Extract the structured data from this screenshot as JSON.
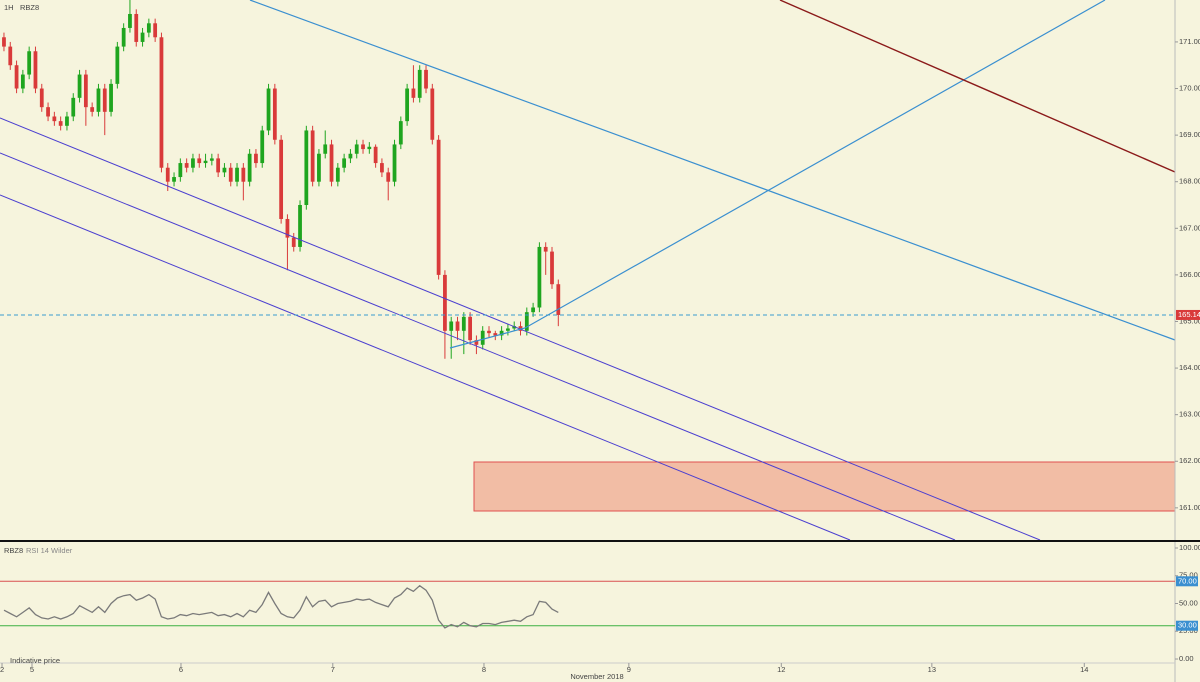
{
  "header": {
    "interval": "1H",
    "symbol": "RBZ8"
  },
  "chart_data": [
    {
      "type": "candlestick",
      "open": [
        171.1,
        170.9,
        170.5,
        170.0,
        170.3,
        170.8,
        170.0,
        169.6,
        169.4,
        169.3,
        169.2,
        169.4,
        169.8,
        170.3,
        169.6,
        169.5,
        170.0,
        169.5,
        170.1,
        170.9,
        171.3,
        171.6,
        171.0,
        171.2,
        171.4,
        171.1,
        168.3,
        168.0,
        168.1,
        168.4,
        168.3,
        168.5,
        168.4,
        168.45,
        168.5,
        168.2,
        168.3,
        168.0,
        168.3,
        168.0,
        168.6,
        168.4,
        169.1,
        170.0,
        168.9,
        167.2,
        166.8,
        166.6,
        167.5,
        169.1,
        168.0,
        168.6,
        168.8,
        168.0,
        168.3,
        168.5,
        168.6,
        168.8,
        168.7,
        168.75,
        168.4,
        168.2,
        168.0,
        168.8,
        169.3,
        170.0,
        169.8,
        170.4,
        170.0,
        168.9,
        166.0,
        164.8,
        165.0,
        164.8,
        165.1,
        164.6,
        164.5,
        164.8,
        164.75,
        164.7,
        164.8,
        164.85,
        164.9,
        164.8,
        165.2,
        165.3,
        166.6,
        166.5,
        165.8
      ],
      "high": [
        171.2,
        171.0,
        170.6,
        170.4,
        170.9,
        170.9,
        170.1,
        169.7,
        169.5,
        169.4,
        169.5,
        169.9,
        170.4,
        170.4,
        169.7,
        170.1,
        170.1,
        170.2,
        171.0,
        171.4,
        171.9,
        171.7,
        171.3,
        171.5,
        171.5,
        171.2,
        168.4,
        168.2,
        168.5,
        168.5,
        168.6,
        168.6,
        168.6,
        168.6,
        168.6,
        168.4,
        168.4,
        168.4,
        168.4,
        168.7,
        168.7,
        169.2,
        170.1,
        170.1,
        169.0,
        167.3,
        166.9,
        167.6,
        169.2,
        169.2,
        168.7,
        169.1,
        168.9,
        168.4,
        168.6,
        168.7,
        168.9,
        168.9,
        168.85,
        168.8,
        168.5,
        168.3,
        168.9,
        169.4,
        170.1,
        170.5,
        170.5,
        170.5,
        170.1,
        169.0,
        166.1,
        165.1,
        165.1,
        165.2,
        165.2,
        164.7,
        164.9,
        164.9,
        164.8,
        164.9,
        164.95,
        165.0,
        165.0,
        165.3,
        165.4,
        166.7,
        166.7,
        166.6,
        165.9
      ],
      "low": [
        170.8,
        170.4,
        169.9,
        169.9,
        170.2,
        169.9,
        169.5,
        169.3,
        169.2,
        169.1,
        169.1,
        169.3,
        169.7,
        169.2,
        169.4,
        169.4,
        169.0,
        169.4,
        170.0,
        170.8,
        171.2,
        170.9,
        170.9,
        171.1,
        171.0,
        168.2,
        167.8,
        167.9,
        168.0,
        168.2,
        168.2,
        168.3,
        168.3,
        168.35,
        168.1,
        168.1,
        167.9,
        167.9,
        167.6,
        167.9,
        168.3,
        168.3,
        169.0,
        168.8,
        167.1,
        166.1,
        166.5,
        166.5,
        167.4,
        167.9,
        167.9,
        168.5,
        167.9,
        167.9,
        168.2,
        168.4,
        168.5,
        168.6,
        168.6,
        168.3,
        168.1,
        167.6,
        167.9,
        168.7,
        169.2,
        169.7,
        169.7,
        169.9,
        168.8,
        165.9,
        164.2,
        164.2,
        164.6,
        164.3,
        164.5,
        164.3,
        164.4,
        164.65,
        164.6,
        164.6,
        164.7,
        164.8,
        164.7,
        164.7,
        165.1,
        165.2,
        166.0,
        165.7,
        164.9
      ],
      "close": [
        170.9,
        170.5,
        170.0,
        170.3,
        170.8,
        170.0,
        169.6,
        169.4,
        169.3,
        169.2,
        169.4,
        169.8,
        170.3,
        169.6,
        169.5,
        170.0,
        169.5,
        170.1,
        170.9,
        171.3,
        171.6,
        171.0,
        171.2,
        171.4,
        171.1,
        168.3,
        168.0,
        168.1,
        168.4,
        168.3,
        168.5,
        168.4,
        168.45,
        168.5,
        168.2,
        168.3,
        168.0,
        168.3,
        168.0,
        168.6,
        168.4,
        169.1,
        170.0,
        168.9,
        167.2,
        166.8,
        166.6,
        167.5,
        169.1,
        168.0,
        168.6,
        168.8,
        168.0,
        168.3,
        168.5,
        168.6,
        168.8,
        168.7,
        168.75,
        168.4,
        168.2,
        168.0,
        168.8,
        169.3,
        170.0,
        169.8,
        170.4,
        170.0,
        168.9,
        166.0,
        164.8,
        165.0,
        164.8,
        165.1,
        164.6,
        164.5,
        164.8,
        164.75,
        164.7,
        164.8,
        164.85,
        164.9,
        164.8,
        165.2,
        165.3,
        166.6,
        166.5,
        165.8,
        165.14
      ],
      "colors": {
        "up": "#1fa51f",
        "down": "#d93a3a"
      },
      "ylim": [
        160.31,
        171.9
      ],
      "yticks": [
        {
          "value": 171,
          "label": "171.00"
        },
        {
          "value": 170,
          "label": "170.00"
        },
        {
          "value": 169,
          "label": "169.00"
        },
        {
          "value": 168,
          "label": "168.00"
        },
        {
          "value": 167,
          "label": "167.00"
        },
        {
          "value": 166,
          "label": "166.00"
        },
        {
          "value": 165,
          "label": "165.00"
        },
        {
          "value": 164,
          "label": "164.00"
        },
        {
          "value": 163,
          "label": "163.00"
        },
        {
          "value": 162,
          "label": "162.00"
        },
        {
          "value": 161,
          "label": "161.00"
        }
      ],
      "xlim": [
        -0.63,
        185.9
      ],
      "xticks": [
        {
          "value": -0.31,
          "label": "2"
        },
        {
          "value": 4.45,
          "label": "5"
        },
        {
          "value": 28.1,
          "label": "6"
        },
        {
          "value": 52.2,
          "label": "7"
        },
        {
          "value": 76.2,
          "label": "8"
        },
        {
          "value": 99.2,
          "label": "9"
        },
        {
          "value": 123.4,
          "label": "12"
        },
        {
          "value": 147.3,
          "label": "13"
        },
        {
          "value": 171.5,
          "label": "14"
        }
      ],
      "x_axis_label": "November 2018",
      "last_price": {
        "value": 165.14,
        "label": "165.14",
        "color": "#3a9bd0"
      },
      "note": "Indicative price"
    },
    {
      "type": "line",
      "symbol": "RBZ8",
      "title": "RSI 14 Wilder",
      "color": "#7a7a7a",
      "values": [
        44,
        41,
        38,
        42,
        46,
        40,
        37,
        36,
        38,
        36,
        38,
        41,
        48,
        45,
        42,
        47,
        42,
        50,
        55,
        57,
        58,
        53,
        55,
        58,
        54,
        38,
        36,
        37,
        40,
        39,
        41,
        40,
        41,
        42,
        39,
        40,
        38,
        41,
        38,
        44,
        42,
        49,
        60,
        50,
        41,
        38,
        37,
        44,
        56,
        47,
        52,
        53,
        47,
        50,
        51,
        52,
        54,
        53,
        54,
        51,
        49,
        47,
        55,
        58,
        64,
        61,
        66,
        62,
        53,
        35,
        28,
        31,
        29,
        33,
        30,
        29,
        32,
        32,
        31,
        33,
        34,
        35,
        34,
        38,
        40,
        52,
        51,
        45,
        42
      ],
      "ylim": [
        -20.7,
        106.3
      ],
      "yticks": [
        {
          "value": 100,
          "label": "100.00"
        },
        {
          "value": 75,
          "label": "75.00"
        },
        {
          "value": 50,
          "label": "50.00"
        },
        {
          "value": 25,
          "label": "25.00"
        },
        {
          "value": 0,
          "label": "0.00"
        }
      ],
      "bands": [
        {
          "value": 70,
          "label": "70.00",
          "color": "#d95050"
        },
        {
          "value": 30,
          "label": "30.00",
          "color": "#3cb043"
        }
      ]
    }
  ]
}
